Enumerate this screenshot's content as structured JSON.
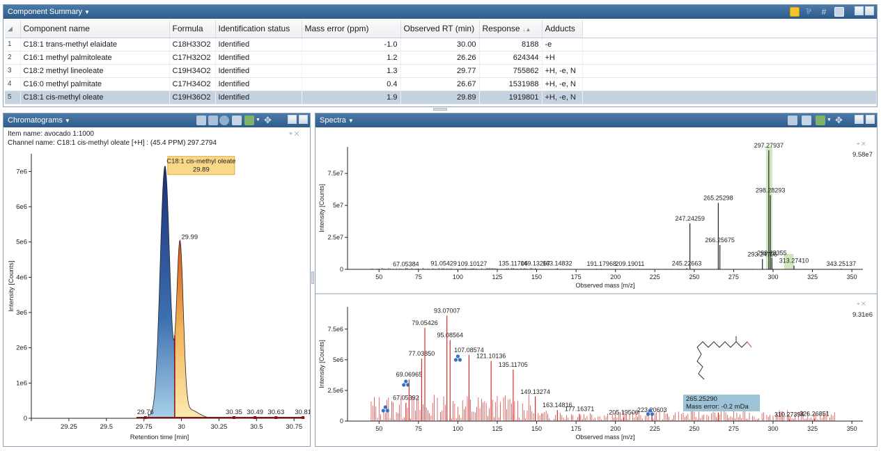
{
  "component_summary": {
    "title": "Component Summary",
    "columns": [
      "Component name",
      "Formula",
      "Identification status",
      "Mass error (ppm)",
      "Observed RT (min)",
      "Response",
      "Adducts"
    ],
    "rows": [
      {
        "idx": "1",
        "name": "C18:1 trans-methyl elaidate",
        "formula": "C18H33O2",
        "status": "Identified",
        "mass_error": "-1.0",
        "rt": "30.00",
        "response": "8188",
        "adducts": "-e"
      },
      {
        "idx": "2",
        "name": "C16:1 methyl palmitoleate",
        "formula": "C17H32O2",
        "status": "Identified",
        "mass_error": "1.2",
        "rt": "26.26",
        "response": "624344",
        "adducts": "+H"
      },
      {
        "idx": "3",
        "name": "C18:2 methyl lineoleate",
        "formula": "C19H34O2",
        "status": "Identified",
        "mass_error": "1.3",
        "rt": "29.77",
        "response": "755862",
        "adducts": "+H, -e, N"
      },
      {
        "idx": "4",
        "name": "C16:0 methyl palmitate",
        "formula": "C17H34O2",
        "status": "Identified",
        "mass_error": "0.4",
        "rt": "26.67",
        "response": "1531988",
        "adducts": "+H, -e, N"
      },
      {
        "idx": "5",
        "name": "C18:1 cis-methyl oleate",
        "formula": "C19H36O2",
        "status": "Identified",
        "mass_error": "1.9",
        "rt": "29.89",
        "response": "1919801",
        "adducts": "+H, -e, N"
      }
    ],
    "selected_row": 5
  },
  "chromatograms": {
    "title": "Chromatograms",
    "item_name": "Item name: avocado 1:1000",
    "channel_name": "Channel name: C18:1 cis-methyl oleate [+H] : (45.4 PPM) 297.2794",
    "callout_line1": "C18:1 cis-methyl oleate",
    "callout_line2": "29.89"
  },
  "spectra": {
    "title": "Spectra",
    "mass_error_label_line1": "265.25290",
    "mass_error_label_line2": "Mass error: -0.2 mDa"
  },
  "chart_data": [
    {
      "type": "area",
      "name": "chromatogram",
      "xlabel": "Retention time [min]",
      "ylabel": "Intensity [Counts]",
      "xlim": [
        29.0,
        30.8
      ],
      "ylim": [
        0,
        7500000
      ],
      "x_ticks": [
        "29.25",
        "29.5",
        "29.75",
        "30",
        "30.25",
        "30.5",
        "30.75"
      ],
      "y_ticks": [
        "0",
        "1e6",
        "2e6",
        "3e6",
        "4e6",
        "5e6",
        "6e6",
        "7e6"
      ],
      "peaks": [
        {
          "rt": 29.89,
          "height": 7150000,
          "label": "C18:1 cis-methyl oleate 29.89",
          "color": "#1d3f8a"
        },
        {
          "rt": 29.99,
          "height": 4850000,
          "label": "29.99",
          "color": "#e06a1a"
        }
      ],
      "annotations": [
        "29.76",
        "30.35",
        "30.49",
        "30.63",
        "30.81"
      ]
    },
    {
      "type": "bar",
      "name": "spectrum-top",
      "xlabel": "Observed mass [m/z]",
      "ylabel": "Intensity [Counts]",
      "xlim": [
        30,
        357
      ],
      "ylim": [
        0,
        95800000
      ],
      "max_label": "9.58e7",
      "x_ticks": [
        "50",
        "75",
        "100",
        "125",
        "150",
        "175",
        "200",
        "225",
        "250",
        "275",
        "300",
        "325",
        "350"
      ],
      "y_ticks": [
        "0",
        "2.5e7",
        "5e7",
        "7.5e7"
      ],
      "peaks": [
        {
          "mz": 67.05384,
          "intensity": 400000,
          "label": "67.05384"
        },
        {
          "mz": 91.05429,
          "intensity": 700000,
          "label": "91.05429"
        },
        {
          "mz": 109.10127,
          "intensity": 600000,
          "label": "109.10127"
        },
        {
          "mz": 135.11706,
          "intensity": 900000,
          "label": "135.11706"
        },
        {
          "mz": 149.13267,
          "intensity": 800000,
          "label": "149.13267"
        },
        {
          "mz": 163.14832,
          "intensity": 800000,
          "label": "163.14832"
        },
        {
          "mz": 191.17968,
          "intensity": 500000,
          "label": "191.17968"
        },
        {
          "mz": 209.19011,
          "intensity": 500000,
          "label": "209.19011"
        },
        {
          "mz": 245.22663,
          "intensity": 900000,
          "label": "245.22663"
        },
        {
          "mz": 247.24259,
          "intensity": 36000000,
          "label": "247.24259"
        },
        {
          "mz": 265.25298,
          "intensity": 52000000,
          "label": "265.25298"
        },
        {
          "mz": 266.25675,
          "intensity": 19000000,
          "label": "266.25675"
        },
        {
          "mz": 293.24756,
          "intensity": 8000000,
          "label": "293.24756"
        },
        {
          "mz": 297.27937,
          "intensity": 93000000,
          "label": "297.27937"
        },
        {
          "mz": 298.28293,
          "intensity": 58000000,
          "label": "298.28293"
        },
        {
          "mz": 299.28355,
          "intensity": 9000000,
          "label": "299.28355"
        },
        {
          "mz": 313.2741,
          "intensity": 3000000,
          "label": "313.27410"
        },
        {
          "mz": 343.25137,
          "intensity": 600000,
          "label": "343.25137"
        }
      ]
    },
    {
      "type": "bar",
      "name": "spectrum-bottom",
      "xlabel": "Observed mass [m/z]",
      "ylabel": "Intensity [Counts]",
      "xlim": [
        30,
        357
      ],
      "ylim": [
        0,
        9310000
      ],
      "max_label": "9.31e6",
      "x_ticks": [
        "50",
        "75",
        "100",
        "125",
        "150",
        "175",
        "200",
        "225",
        "250",
        "275",
        "300",
        "325",
        "350"
      ],
      "y_ticks": [
        "0",
        "2.5e6",
        "5e6",
        "7.5e6"
      ],
      "peaks": [
        {
          "mz": 67.05392,
          "intensity": 1500000,
          "label": "67.05392"
        },
        {
          "mz": 69.06965,
          "intensity": 3400000,
          "label": "69.06965"
        },
        {
          "mz": 77.0385,
          "intensity": 5100000,
          "label": "77.03850"
        },
        {
          "mz": 79.05426,
          "intensity": 7600000,
          "label": "79.05426"
        },
        {
          "mz": 93.07007,
          "intensity": 8600000,
          "label": "93.07007"
        },
        {
          "mz": 95.08564,
          "intensity": 6600000,
          "label": "95.08564"
        },
        {
          "mz": 107.08574,
          "intensity": 5400000,
          "label": "107.08574"
        },
        {
          "mz": 121.10136,
          "intensity": 4900000,
          "label": "121.10136"
        },
        {
          "mz": 135.11705,
          "intensity": 4200000,
          "label": "135.11705"
        },
        {
          "mz": 149.13274,
          "intensity": 2000000,
          "label": "149.13274"
        },
        {
          "mz": 163.14816,
          "intensity": 900000,
          "label": "163.14816"
        },
        {
          "mz": 177.16371,
          "intensity": 600000,
          "label": "177.16371"
        },
        {
          "mz": 205.19506,
          "intensity": 300000,
          "label": "205.19506"
        },
        {
          "mz": 223.20603,
          "intensity": 500000,
          "label": "223.20603"
        },
        {
          "mz": 265.2529,
          "intensity": 700000,
          "label": "265.25290"
        },
        {
          "mz": 310.27394,
          "intensity": 150000,
          "label": "310.27394"
        },
        {
          "mz": 326.26851,
          "intensity": 200000,
          "label": "326.26851"
        }
      ]
    }
  ]
}
